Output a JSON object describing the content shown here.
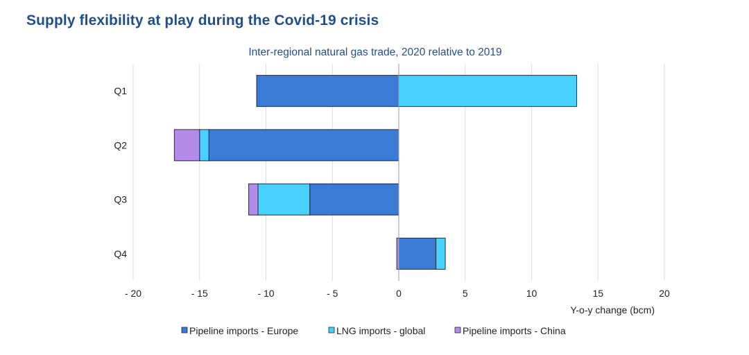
{
  "header": {
    "title": "Supply flexibility at play during the Covid-19 crisis"
  },
  "chart_data": {
    "type": "bar",
    "orientation": "horizontal",
    "stacked": true,
    "title": "Inter-regional natural gas trade, 2020 relative to 2019",
    "categories": [
      "Q1",
      "Q2",
      "Q3",
      "Q4"
    ],
    "xlabel": "Y-o-y change (bcm)",
    "ylabel": "",
    "xlim": [
      -20,
      20
    ],
    "xticks": [
      -20,
      -15,
      -10,
      -5,
      0,
      5,
      10,
      15,
      20
    ],
    "xtick_labels": [
      "- 20",
      "- 15",
      "- 10",
      "- 5",
      "0",
      "5",
      "10",
      "15",
      "20"
    ],
    "grid": "vertical",
    "legend_position": "bottom",
    "series": [
      {
        "name": "Pipeline imports - Europe",
        "color": "#3a7bd5",
        "values": [
          -10.7,
          -14.3,
          -6.7,
          2.8
        ]
      },
      {
        "name": "LNG imports - global",
        "color": "#48d1ff",
        "values": [
          13.4,
          -0.7,
          -3.9,
          0.7
        ]
      },
      {
        "name": "Pipeline imports - China",
        "color": "#b48be8",
        "values": [
          0,
          -1.9,
          -0.7,
          -0.15
        ]
      }
    ]
  }
}
